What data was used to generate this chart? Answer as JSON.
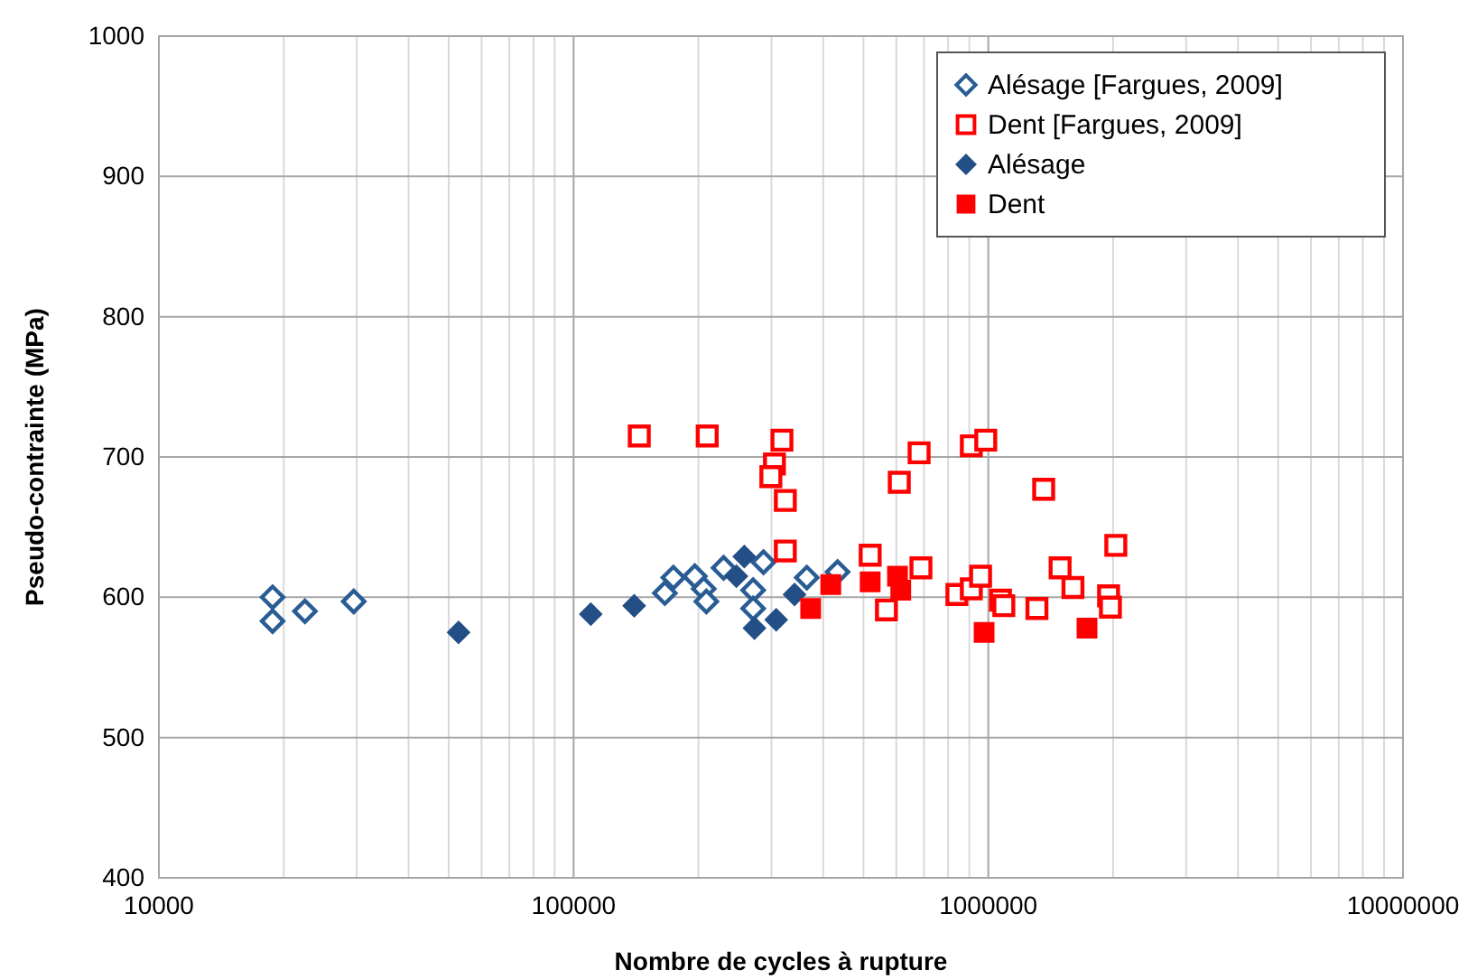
{
  "chart_data": {
    "type": "scatter",
    "xlabel": "Nombre de cycles à rupture",
    "ylabel": "Pseudo-contrainte (MPa)",
    "log": "x",
    "xlim": [
      10000,
      10000000
    ],
    "xticks": [
      10000,
      100000,
      1000000,
      10000000
    ],
    "ylim": [
      400,
      1000
    ],
    "yticks": [
      400,
      500,
      600,
      700,
      800,
      900,
      1000
    ],
    "grid": true,
    "legend": "top right",
    "series": [
      {
        "name": "Alésage [Fargues, 2009]",
        "color": "#2a5c94",
        "marker": "diamond",
        "x": [
          18800,
          18800,
          22500,
          29500,
          166000,
          174000,
          196000,
          206000,
          209000,
          230000,
          287000,
          271000,
          271000,
          365000,
          433000
        ],
        "values": [
          600,
          583,
          590,
          597,
          603,
          614,
          615,
          606,
          597,
          621,
          625,
          605,
          592,
          614,
          618
        ]
      },
      {
        "name": "Dent [Fargues, 2009]",
        "color": "#ff0000",
        "marker": "square",
        "x": [
          144000,
          210000,
          318000,
          305000,
          299000,
          324000,
          324000,
          519000,
          688000,
          568000,
          610000,
          681000,
          840000,
          910000,
          986000,
          1360000,
          910000,
          958000,
          1070000,
          1090000,
          1310000,
          1490000,
          1600000,
          1950000,
          1970000,
          2030000
        ],
        "values": [
          715,
          715,
          712,
          695,
          686,
          669,
          633,
          630,
          621,
          591,
          682,
          703,
          602,
          708,
          712,
          677,
          606,
          615,
          598,
          594,
          592,
          621,
          607,
          601,
          593,
          637
        ]
      },
      {
        "name": "Alésage",
        "color": "#234f86",
        "marker": "diamond",
        "x": [
          52800,
          110000,
          140000,
          258000,
          247000,
          273000,
          308000,
          341000
        ],
        "values": [
          575,
          588,
          594,
          629,
          615,
          578,
          584,
          602
        ]
      },
      {
        "name": "Dent",
        "color": "#ff0000",
        "marker": "square",
        "x": [
          373000,
          417000,
          519000,
          604000,
          615000,
          977000,
          1730000
        ],
        "values": [
          592,
          609,
          611,
          615,
          605,
          575,
          578
        ]
      }
    ]
  }
}
